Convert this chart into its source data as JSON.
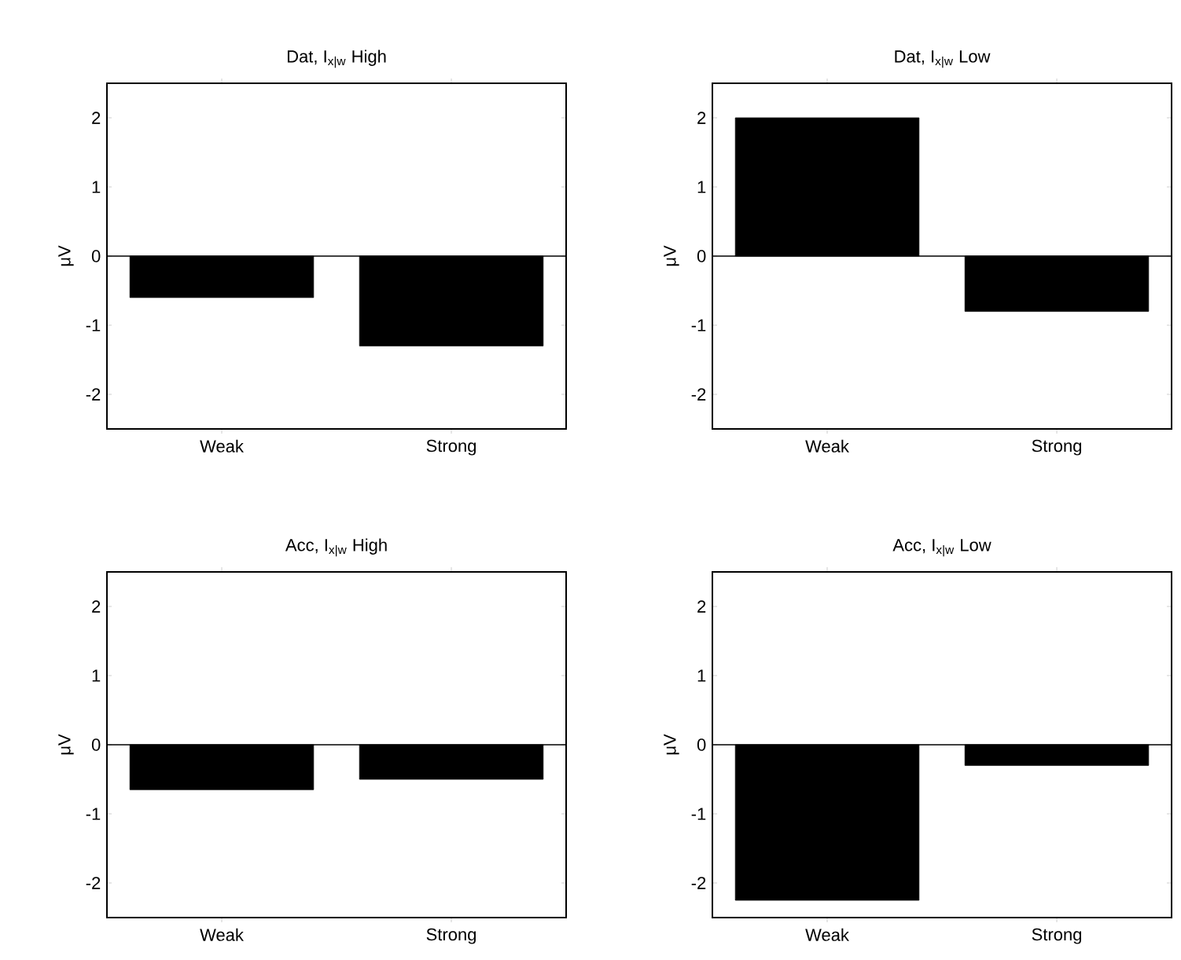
{
  "chart_data": [
    {
      "type": "bar",
      "title": "Dat, I$_{x|w}$ High",
      "ylabel": "μV",
      "categories": [
        "Weak",
        "Strong"
      ],
      "values": [
        -0.6,
        -1.3
      ],
      "color": "#000000",
      "ylim": [
        -2.5,
        2.5
      ],
      "yticks": [
        -2,
        -1,
        0,
        1,
        2
      ],
      "ref_lines": [
        {
          "axis": "y",
          "value": 0
        }
      ]
    },
    {
      "type": "bar",
      "title": "Dat, I$_{x|w}$ Low",
      "ylabel": "μV",
      "categories": [
        "Weak",
        "Strong"
      ],
      "values": [
        2.0,
        -0.8
      ],
      "color": "#000000",
      "ylim": [
        -2.5,
        2.5
      ],
      "yticks": [
        -2,
        -1,
        0,
        1,
        2
      ],
      "ref_lines": [
        {
          "axis": "y",
          "value": 0
        }
      ]
    },
    {
      "type": "bar",
      "title": "Acc, I$_{x|w}$ High",
      "ylabel": "μV",
      "categories": [
        "Weak",
        "Strong"
      ],
      "values": [
        -0.65,
        -0.5
      ],
      "color": "#000000",
      "ylim": [
        -2.5,
        2.5
      ],
      "yticks": [
        -2,
        -1,
        0,
        1,
        2
      ],
      "ref_lines": [
        {
          "axis": "y",
          "value": 0
        }
      ]
    },
    {
      "type": "bar",
      "title": "Acc, I$_{x|w}$ Low",
      "ylabel": "μV",
      "categories": [
        "Weak",
        "Strong"
      ],
      "values": [
        -2.25,
        -0.3
      ],
      "color": "#000000",
      "ylim": [
        -2.5,
        2.5
      ],
      "yticks": [
        -2,
        -1,
        0,
        1,
        2
      ],
      "ref_lines": [
        {
          "axis": "y",
          "value": 0
        }
      ]
    }
  ]
}
